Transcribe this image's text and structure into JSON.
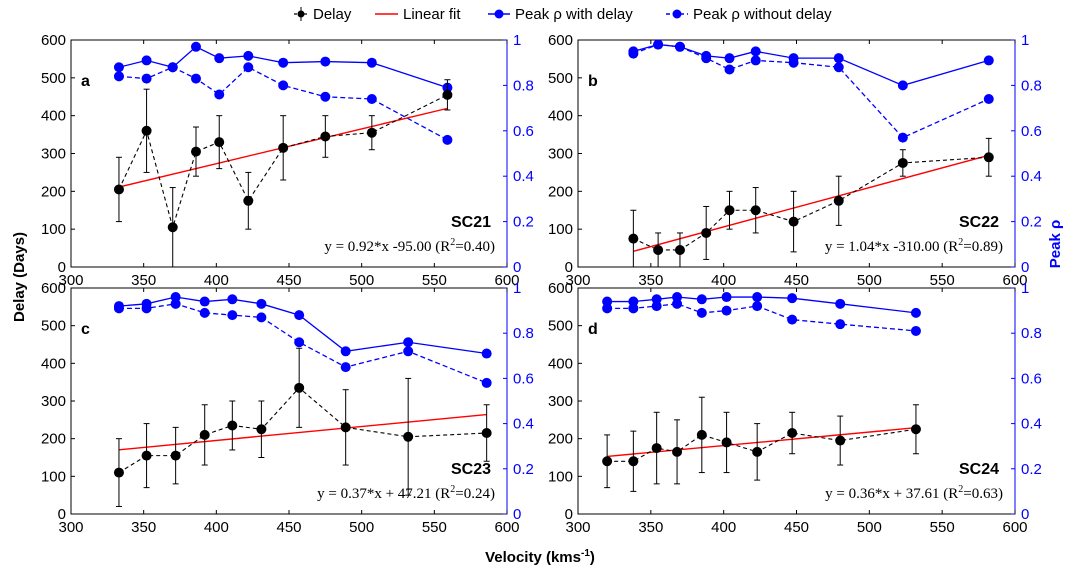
{
  "legend": [
    {
      "key": "delay",
      "label": "Delay"
    },
    {
      "key": "fit",
      "label": "Linear fit"
    },
    {
      "key": "with",
      "label": "Peak ρ with delay"
    },
    {
      "key": "without",
      "label": "Peak ρ without delay"
    }
  ],
  "axes": {
    "xlabel": "Velocity (kms",
    "xlabel_sup": "-1",
    "xlabel_end": ")",
    "ylabel_left": "Delay (Days)",
    "ylabel_right": "Peak ρ"
  },
  "colors": {
    "delay": "#000000",
    "fit": "#ff0000",
    "peak": "#0000ff"
  },
  "chart_data": [
    {
      "type": "line",
      "panel": "a",
      "cycle": "SC21",
      "fit_text": "y = 0.92*x -95.00 (R",
      "fit_r2": "=0.40)",
      "xlim": [
        300,
        600
      ],
      "xticks": [
        300,
        350,
        400,
        450,
        500,
        550,
        600
      ],
      "ylim_left": [
        0,
        600
      ],
      "yticks_left": [
        0,
        100,
        200,
        300,
        400,
        500,
        600
      ],
      "ylim_right": [
        0,
        1
      ],
      "yticks_right": [
        0,
        0.2,
        0.4,
        0.6,
        0.8,
        1
      ],
      "delay": {
        "x": [
          333,
          352,
          370,
          386,
          402,
          422,
          446,
          475,
          507,
          559
        ],
        "y": [
          205,
          360,
          105,
          305,
          330,
          175,
          315,
          345,
          355,
          455
        ],
        "err": [
          85,
          110,
          105,
          65,
          70,
          75,
          85,
          55,
          45,
          40
        ]
      },
      "fit": {
        "slope": 0.92,
        "intercept": -95.0,
        "x_range": [
          333,
          559
        ]
      },
      "peak_with_delay": {
        "x": [
          333,
          352,
          370,
          386,
          402,
          422,
          446,
          475,
          507,
          559
        ],
        "y": [
          0.88,
          0.91,
          0.88,
          0.97,
          0.92,
          0.93,
          0.9,
          0.905,
          0.9,
          0.79
        ]
      },
      "peak_without_delay": {
        "x": [
          333,
          352,
          370,
          386,
          402,
          422,
          446,
          475,
          507,
          559
        ],
        "y": [
          0.84,
          0.83,
          0.88,
          0.83,
          0.76,
          0.88,
          0.8,
          0.75,
          0.74,
          0.56
        ]
      }
    },
    {
      "type": "line",
      "panel": "b",
      "cycle": "SC22",
      "fit_text": "y = 1.04*x -310.00 (R",
      "fit_r2": "=0.89)",
      "xlim": [
        300,
        600
      ],
      "xticks": [
        300,
        350,
        400,
        450,
        500,
        550,
        600
      ],
      "ylim_left": [
        0,
        600
      ],
      "yticks_left": [
        0,
        100,
        200,
        300,
        400,
        500,
        600
      ],
      "ylim_right": [
        0,
        1
      ],
      "yticks_right": [
        0,
        0.2,
        0.4,
        0.6,
        0.8,
        1
      ],
      "delay": {
        "x": [
          338,
          355,
          370,
          388,
          404,
          422,
          448,
          479,
          523,
          582
        ],
        "y": [
          75,
          45,
          45,
          90,
          150,
          150,
          120,
          175,
          275,
          290
        ],
        "err": [
          75,
          45,
          45,
          70,
          50,
          60,
          80,
          65,
          35,
          50
        ]
      },
      "fit": {
        "slope": 1.04,
        "intercept": -310.0,
        "x_range": [
          338,
          582
        ]
      },
      "peak_with_delay": {
        "x": [
          338,
          355,
          370,
          388,
          404,
          422,
          448,
          479,
          523,
          582
        ],
        "y": [
          0.95,
          0.98,
          0.97,
          0.93,
          0.92,
          0.95,
          0.92,
          0.92,
          0.8,
          0.91
        ]
      },
      "peak_without_delay": {
        "x": [
          338,
          355,
          370,
          388,
          404,
          422,
          448,
          479,
          523,
          582
        ],
        "y": [
          0.94,
          0.98,
          0.97,
          0.92,
          0.87,
          0.91,
          0.9,
          0.88,
          0.57,
          0.74
        ]
      }
    },
    {
      "type": "line",
      "panel": "c",
      "cycle": "SC23",
      "fit_text": "y = 0.37*x + 47.21 (R",
      "fit_r2": "=0.24)",
      "xlim": [
        300,
        600
      ],
      "xticks": [
        300,
        350,
        400,
        450,
        500,
        550,
        600
      ],
      "ylim_left": [
        0,
        600
      ],
      "yticks_left": [
        0,
        100,
        200,
        300,
        400,
        500,
        600
      ],
      "ylim_right": [
        0,
        1
      ],
      "yticks_right": [
        0,
        0.2,
        0.4,
        0.6,
        0.8,
        1
      ],
      "delay": {
        "x": [
          333,
          352,
          372,
          392,
          411,
          431,
          457,
          489,
          532,
          586
        ],
        "y": [
          110,
          155,
          155,
          210,
          235,
          225,
          335,
          230,
          205,
          215
        ],
        "err": [
          90,
          85,
          75,
          80,
          65,
          75,
          105,
          100,
          155,
          75
        ]
      },
      "fit": {
        "slope": 0.37,
        "intercept": 47.21,
        "x_range": [
          333,
          586
        ]
      },
      "peak_with_delay": {
        "x": [
          333,
          352,
          372,
          392,
          411,
          431,
          457,
          489,
          532,
          586
        ],
        "y": [
          0.92,
          0.93,
          0.96,
          0.94,
          0.95,
          0.93,
          0.88,
          0.72,
          0.76,
          0.71
        ]
      },
      "peak_without_delay": {
        "x": [
          333,
          352,
          372,
          392,
          411,
          431,
          457,
          489,
          532,
          586
        ],
        "y": [
          0.91,
          0.91,
          0.93,
          0.89,
          0.88,
          0.87,
          0.76,
          0.65,
          0.72,
          0.58
        ]
      }
    },
    {
      "type": "line",
      "panel": "d",
      "cycle": "SC24",
      "fit_text": "y = 0.36*x + 37.61 (R",
      "fit_r2": "=0.63)",
      "xlim": [
        300,
        600
      ],
      "xticks": [
        300,
        350,
        400,
        450,
        500,
        550,
        600
      ],
      "ylim_left": [
        0,
        600
      ],
      "yticks_left": [
        0,
        100,
        200,
        300,
        400,
        500,
        600
      ],
      "ylim_right": [
        0,
        1
      ],
      "yticks_right": [
        0,
        0.2,
        0.4,
        0.6,
        0.8,
        1
      ],
      "delay": {
        "x": [
          320,
          338,
          354,
          368,
          385,
          402,
          423,
          447,
          480,
          532
        ],
        "y": [
          140,
          140,
          175,
          165,
          210,
          190,
          165,
          215,
          195,
          225
        ],
        "err": [
          70,
          80,
          95,
          85,
          100,
          80,
          75,
          55,
          65,
          65
        ]
      },
      "fit": {
        "slope": 0.36,
        "intercept": 37.61,
        "x_range": [
          320,
          532
        ]
      },
      "peak_with_delay": {
        "x": [
          320,
          338,
          354,
          368,
          385,
          402,
          423,
          447,
          480,
          532
        ],
        "y": [
          0.94,
          0.94,
          0.95,
          0.96,
          0.95,
          0.96,
          0.96,
          0.955,
          0.93,
          0.89
        ]
      },
      "peak_without_delay": {
        "x": [
          320,
          338,
          354,
          368,
          385,
          402,
          423,
          447,
          480,
          532
        ],
        "y": [
          0.91,
          0.91,
          0.92,
          0.93,
          0.89,
          0.9,
          0.92,
          0.86,
          0.84,
          0.81
        ]
      }
    }
  ]
}
